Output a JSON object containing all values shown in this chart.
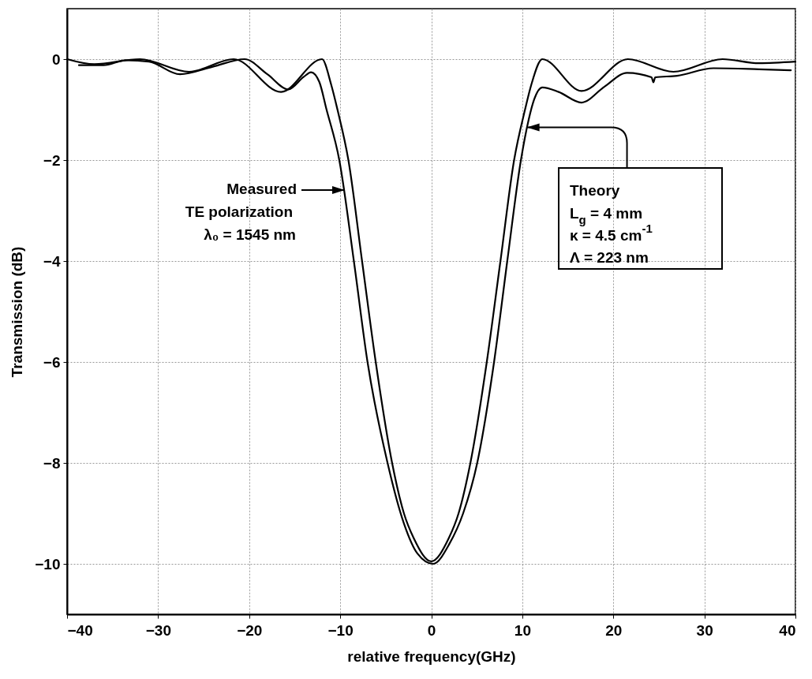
{
  "chart_data": {
    "type": "line",
    "xlabel": "relative frequency(GHz)",
    "ylabel": "Transmission (dB)",
    "xlim": [
      -40,
      40
    ],
    "ylim": [
      -11,
      1
    ],
    "xticks": [
      -40,
      -30,
      -20,
      -10,
      0,
      10,
      20,
      30,
      40
    ],
    "yticks": [
      -10,
      -8,
      -6,
      -4,
      -2,
      0
    ],
    "grid": true,
    "line_style": "solid",
    "series": [
      {
        "color": "#000000",
        "x": [
          -38.7,
          -36,
          -33.5,
          -31,
          -27.6,
          -24,
          -20.5,
          -18,
          -15.7,
          -14,
          -13.2,
          -12.3,
          -11.5,
          -10.1,
          -8.5,
          -7,
          -4.8,
          -3,
          -1.5,
          0.2,
          2,
          3.5,
          5.05,
          6.9,
          8.35,
          9.85,
          10.7,
          11.3,
          12.2,
          14,
          16.5,
          19,
          21.5,
          24.2,
          24.4,
          24.6,
          27,
          31,
          36,
          39.5
        ],
        "values": [
          -0.12,
          -0.12,
          -0.02,
          -0.05,
          -0.3,
          -0.15,
          0,
          -0.3,
          -0.6,
          -0.35,
          -0.26,
          -0.45,
          -1,
          -2,
          -4,
          -6,
          -8,
          -9.2,
          -9.8,
          -10,
          -9.6,
          -9,
          -8,
          -6,
          -4,
          -2,
          -1.2,
          -0.8,
          -0.56,
          -0.65,
          -0.86,
          -0.55,
          -0.27,
          -0.36,
          -0.46,
          -0.36,
          -0.33,
          -0.18,
          -0.2,
          -0.22
        ]
      },
      {
        "color": "#000000",
        "x": [
          -40,
          -37,
          -32,
          -26.6,
          -21.7,
          -16.5,
          -12,
          -11,
          -10.3,
          -9.1,
          -7.6,
          -6.1,
          -4.3,
          -3,
          -1.9,
          0,
          1.9,
          3,
          4.3,
          6.1,
          7.6,
          9.1,
          10.3,
          11,
          12.2,
          16.5,
          21.6,
          26.6,
          32,
          36,
          40
        ],
        "values": [
          0,
          -0.1,
          0,
          -0.25,
          0,
          -0.65,
          0,
          -0.5,
          -1,
          -2,
          -4,
          -6,
          -8,
          -9,
          -9.5,
          -9.95,
          -9.5,
          -9,
          -8,
          -6,
          -4,
          -2,
          -1,
          -0.5,
          0,
          -0.63,
          0,
          -0.25,
          0,
          -0.08,
          -0.05
        ]
      }
    ],
    "annotations": [
      "Measured",
      "TE polarization",
      "λ₀ = 1545 nm",
      {
        "text": "Theory",
        "x": 10.5,
        "y": -1.35
      },
      "L$_{g}$ =  4 mm",
      "κ  =  4.5 cm$^{-1}$",
      "Λ  =  223 nm"
    ]
  }
}
